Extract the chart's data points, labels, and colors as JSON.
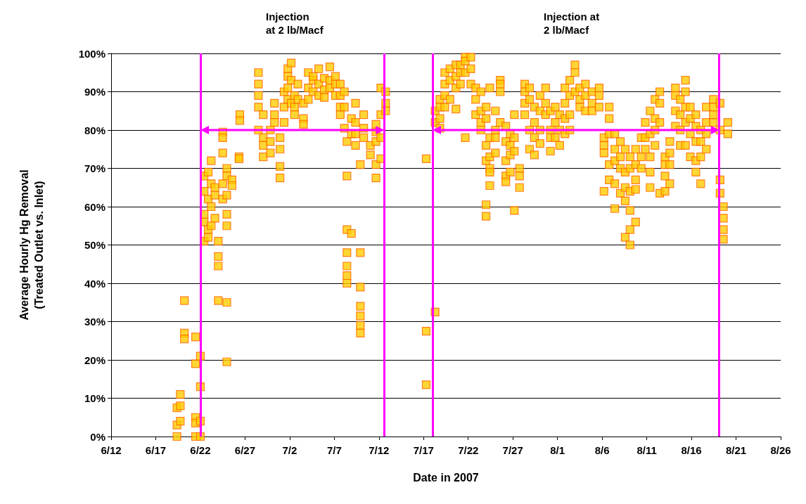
{
  "chart_data": {
    "type": "scatter",
    "xlabel": "Date in 2007",
    "ylabel": "Average Hourly Hg Removal\n(Treated Outlet vs. Inlet)",
    "annotations": [
      "Injection\nat 2 lb/Macf",
      "Injection at\n2 lb/Macf"
    ],
    "xlim": [
      "2007-06-12",
      "2007-08-26"
    ],
    "xticks": [
      {
        "value": "2007-06-12",
        "label": "6/12"
      },
      {
        "value": "2007-06-17",
        "label": "6/17"
      },
      {
        "value": "2007-06-22",
        "label": "6/22"
      },
      {
        "value": "2007-06-27",
        "label": "6/27"
      },
      {
        "value": "2007-07-02",
        "label": "7/2"
      },
      {
        "value": "2007-07-07",
        "label": "7/7"
      },
      {
        "value": "2007-07-12",
        "label": "7/12"
      },
      {
        "value": "2007-07-17",
        "label": "7/17"
      },
      {
        "value": "2007-07-22",
        "label": "7/22"
      },
      {
        "value": "2007-07-27",
        "label": "7/27"
      },
      {
        "value": "2007-08-01",
        "label": "8/1"
      },
      {
        "value": "2007-08-06",
        "label": "8/6"
      },
      {
        "value": "2007-08-11",
        "label": "8/11"
      },
      {
        "value": "2007-08-16",
        "label": "8/16"
      },
      {
        "value": "2007-08-21",
        "label": "8/21"
      },
      {
        "value": "2007-08-26",
        "label": "8/26"
      }
    ],
    "ylim": [
      0,
      100
    ],
    "yticks": [
      {
        "value": 0,
        "label": "0%"
      },
      {
        "value": 10,
        "label": "10%"
      },
      {
        "value": 20,
        "label": "20%"
      },
      {
        "value": 30,
        "label": "30%"
      },
      {
        "value": 40,
        "label": "40%"
      },
      {
        "value": 50,
        "label": "50%"
      },
      {
        "value": 60,
        "label": "60%"
      },
      {
        "value": 70,
        "label": "70%"
      },
      {
        "value": 80,
        "label": "80%"
      },
      {
        "value": 90,
        "label": "90%"
      },
      {
        "value": 100,
        "label": "100%"
      }
    ],
    "grid": "y",
    "ref_lines": [
      {
        "axis": "x",
        "value": "2007-06-22T00:00",
        "label": null,
        "color": "#ff00ff"
      },
      {
        "axis": "x",
        "value": "2007-07-12T14:00",
        "label": null,
        "color": "#ff00ff"
      },
      {
        "axis": "x",
        "value": "2007-07-18T00:00",
        "label": null,
        "color": "#ff00ff"
      },
      {
        "axis": "x",
        "value": "2007-08-19T03:00",
        "label": null,
        "color": "#ff00ff"
      }
    ],
    "series": [
      {
        "color": "#ffcc00",
        "marker": "square",
        "x": [
          "2007-06-19T09:00",
          "2007-06-19T09:00",
          "2007-06-19T09:00",
          "2007-06-19T18:00",
          "2007-06-19T18:00",
          "2007-06-19T18:00",
          "2007-06-20T05:00",
          "2007-06-20T05:00",
          "2007-06-20T05:00",
          "2007-06-21T11:00",
          "2007-06-21T11:00",
          "2007-06-21T11:00",
          "2007-06-21T11:00",
          "2007-06-21T11:00",
          "2007-06-22T00:00",
          "2007-06-22T00:00",
          "2007-06-22T00:00",
          "2007-06-22T00:00",
          "2007-06-22T10:00",
          "2007-06-22T10:00",
          "2007-06-22T10:00",
          "2007-06-22T10:00",
          "2007-06-22T10:00",
          "2007-06-22T21:00",
          "2007-06-22T21:00",
          "2007-06-22T21:00",
          "2007-06-22T21:00",
          "2007-06-23T05:00",
          "2007-06-23T05:00",
          "2007-06-23T05:00",
          "2007-06-23T05:00",
          "2007-06-23T15:00",
          "2007-06-23T15:00",
          "2007-06-23T15:00",
          "2007-06-24T00:00",
          "2007-06-24T00:00",
          "2007-06-24T00:00",
          "2007-06-24T00:00",
          "2007-06-24T12:00",
          "2007-06-24T12:00",
          "2007-06-24T12:00",
          "2007-06-24T12:00",
          "2007-06-24T12:00",
          "2007-06-24T23:00",
          "2007-06-24T23:00",
          "2007-06-24T23:00",
          "2007-06-24T23:00",
          "2007-06-24T23:00",
          "2007-06-24T23:00",
          "2007-06-24T23:00",
          "2007-06-25T13:00",
          "2007-06-25T13:00",
          "2007-06-26T08:00",
          "2007-06-26T08:00",
          "2007-06-26T10:00",
          "2007-06-26T10:00",
          "2007-06-28T12:00",
          "2007-06-28T12:00",
          "2007-06-28T12:00",
          "2007-06-28T12:00",
          "2007-06-28T12:00",
          "2007-06-29T01:00",
          "2007-06-29T01:00",
          "2007-06-29T01:00",
          "2007-06-29T01:00",
          "2007-06-29T20:00",
          "2007-06-29T20:00",
          "2007-06-29T20:00",
          "2007-06-30T07:00",
          "2007-06-30T07:00",
          "2007-06-30T07:00",
          "2007-06-30T22:00",
          "2007-06-30T22:00",
          "2007-06-30T22:00",
          "2007-06-30T22:00",
          "2007-07-01T09:00",
          "2007-07-01T09:00",
          "2007-07-01T09:00",
          "2007-07-01T19:00",
          "2007-07-01T19:00",
          "2007-07-01T19:00",
          "2007-07-01T19:00",
          "2007-07-02T04:00",
          "2007-07-02T04:00",
          "2007-07-02T04:00",
          "2007-07-02T13:00",
          "2007-07-02T13:00",
          "2007-07-02T13:00",
          "2007-07-02T22:00",
          "2007-07-02T22:00",
          "2007-07-03T13:00",
          "2007-07-03T13:00",
          "2007-07-03T13:00",
          "2007-07-04T02:00",
          "2007-07-04T02:00",
          "2007-07-04T02:00",
          "2007-07-04T15:00",
          "2007-07-04T15:00",
          "2007-07-04T15:00",
          "2007-07-05T06:00",
          "2007-07-05T06:00",
          "2007-07-05T06:00",
          "2007-07-05T21:00",
          "2007-07-05T21:00",
          "2007-07-05T21:00",
          "2007-07-06T12:00",
          "2007-07-06T12:00",
          "2007-07-06T12:00",
          "2007-07-07T03:00",
          "2007-07-07T03:00",
          "2007-07-07T03:00",
          "2007-07-07T16:00",
          "2007-07-07T16:00",
          "2007-07-07T16:00",
          "2007-07-07T16:00",
          "2007-07-08T03:00",
          "2007-07-08T03:00",
          "2007-07-08T03:00",
          "2007-07-08T10:00",
          "2007-07-08T10:00",
          "2007-07-08T10:00",
          "2007-07-08T10:00",
          "2007-07-08T10:00",
          "2007-07-08T10:00",
          "2007-07-08T10:00",
          "2007-07-08T22:00",
          "2007-07-08T22:00",
          "2007-07-08T22:00",
          "2007-07-09T09:00",
          "2007-07-09T09:00",
          "2007-07-09T09:00",
          "2007-07-09T09:00",
          "2007-07-09T22:00",
          "2007-07-09T22:00",
          "2007-07-09T22:00",
          "2007-07-09T22:00",
          "2007-07-09T22:00",
          "2007-07-09T22:00",
          "2007-07-09T22:00",
          "2007-07-10T07:00",
          "2007-07-10T07:00",
          "2007-07-10T07:00",
          "2007-07-11T01:00",
          "2007-07-11T01:00",
          "2007-07-11T16:00",
          "2007-07-11T16:00",
          "2007-07-11T16:00",
          "2007-07-11T16:00",
          "2007-07-11T16:00",
          "2007-07-12T05:00",
          "2007-07-12T05:00",
          "2007-07-12T05:00",
          "2007-07-12T05:00",
          "2007-07-12T18:00",
          "2007-07-12T18:00",
          "2007-07-12T18:00",
          "2007-07-17T07:00",
          "2007-07-17T07:00",
          "2007-07-17T07:00",
          "2007-07-18T07:00",
          "2007-07-18T07:00",
          "2007-07-18T07:00",
          "2007-07-18T20:00",
          "2007-07-18T20:00",
          "2007-07-18T20:00",
          "2007-07-18T20:00",
          "2007-07-19T09:00",
          "2007-07-19T09:00",
          "2007-07-19T09:00",
          "2007-07-19T09:00",
          "2007-07-19T23:00",
          "2007-07-19T23:00",
          "2007-07-19T23:00",
          "2007-07-20T15:00",
          "2007-07-20T15:00",
          "2007-07-20T15:00",
          "2007-07-20T15:00",
          "2007-07-21T03:00",
          "2007-07-21T03:00",
          "2007-07-21T03:00",
          "2007-07-21T16:00",
          "2007-07-21T16:00",
          "2007-07-21T16:00",
          "2007-07-21T16:00",
          "2007-07-22T07:00",
          "2007-07-22T07:00",
          "2007-07-22T07:00",
          "2007-07-22T20:00",
          "2007-07-22T20:00",
          "2007-07-22T20:00",
          "2007-07-23T10:00",
          "2007-07-23T10:00",
          "2007-07-23T10:00",
          "2007-07-23T10:00",
          "2007-07-24T00:00",
          "2007-07-24T00:00",
          "2007-07-24T00:00",
          "2007-07-24T00:00",
          "2007-07-24T00:00",
          "2007-07-24T00:00",
          "2007-07-24T10:00",
          "2007-07-24T10:00",
          "2007-07-24T10:00",
          "2007-07-24T10:00",
          "2007-07-24T10:00",
          "2007-07-24T10:00",
          "2007-07-25T01:00",
          "2007-07-25T01:00",
          "2007-07-25T01:00",
          "2007-07-25T01:00",
          "2007-07-25T14:00",
          "2007-07-25T14:00",
          "2007-07-25T14:00",
          "2007-07-25T14:00",
          "2007-07-26T05:00",
          "2007-07-26T05:00",
          "2007-07-26T05:00",
          "2007-07-26T05:00",
          "2007-07-26T05:00",
          "2007-07-26T17:00",
          "2007-07-26T17:00",
          "2007-07-26T17:00",
          "2007-07-26T17:00",
          "2007-07-27T04:00",
          "2007-07-27T04:00",
          "2007-07-27T04:00",
          "2007-07-27T04:00",
          "2007-07-27T18:00",
          "2007-07-27T18:00",
          "2007-07-27T18:00",
          "2007-07-28T08:00",
          "2007-07-28T08:00",
          "2007-07-28T08:00",
          "2007-07-28T08:00",
          "2007-07-28T21:00",
          "2007-07-28T21:00",
          "2007-07-28T21:00",
          "2007-07-28T21:00",
          "2007-07-29T10:00",
          "2007-07-29T10:00",
          "2007-07-29T10:00",
          "2007-07-29T10:00",
          "2007-07-30T01:00",
          "2007-07-30T01:00",
          "2007-07-30T01:00",
          "2007-07-30T01:00",
          "2007-07-30T16:00",
          "2007-07-30T16:00",
          "2007-07-30T16:00",
          "2007-07-31T05:00",
          "2007-07-31T05:00",
          "2007-07-31T05:00",
          "2007-07-31T05:00",
          "2007-07-31T18:00",
          "2007-07-31T18:00",
          "2007-07-31T18:00",
          "2007-08-01T06:00",
          "2007-08-01T06:00",
          "2007-08-01T06:00",
          "2007-08-01T20:00",
          "2007-08-01T20:00",
          "2007-08-01T20:00",
          "2007-08-01T20:00",
          "2007-08-02T09:00",
          "2007-08-02T09:00",
          "2007-08-02T09:00",
          "2007-08-02T09:00",
          "2007-08-02T23:00",
          "2007-08-02T23:00",
          "2007-08-02T23:00",
          "2007-08-03T12:00",
          "2007-08-03T12:00",
          "2007-08-03T12:00",
          "2007-08-04T03:00",
          "2007-08-04T03:00",
          "2007-08-04T03:00",
          "2007-08-04T21:00",
          "2007-08-04T21:00",
          "2007-08-04T21:00",
          "2007-08-05T16:00",
          "2007-08-05T16:00",
          "2007-08-05T16:00",
          "2007-08-06T05:00",
          "2007-08-06T05:00",
          "2007-08-06T05:00",
          "2007-08-06T05:00",
          "2007-08-06T19:00",
          "2007-08-06T19:00",
          "2007-08-06T19:00",
          "2007-08-06T19:00",
          "2007-08-06T19:00",
          "2007-08-07T10:00",
          "2007-08-07T10:00",
          "2007-08-07T10:00",
          "2007-08-07T10:00",
          "2007-08-07T10:00",
          "2007-08-08T01:00",
          "2007-08-08T01:00",
          "2007-08-08T01:00",
          "2007-08-08T01:00",
          "2007-08-08T14:00",
          "2007-08-08T14:00",
          "2007-08-08T14:00",
          "2007-08-08T14:00",
          "2007-08-08T14:00",
          "2007-08-09T03:00",
          "2007-08-09T03:00",
          "2007-08-09T03:00",
          "2007-08-09T03:00",
          "2007-08-09T03:00",
          "2007-08-09T03:00",
          "2007-08-09T18:00",
          "2007-08-09T18:00",
          "2007-08-09T18:00",
          "2007-08-09T18:00",
          "2007-08-09T18:00",
          "2007-08-10T09:00",
          "2007-08-10T09:00",
          "2007-08-10T09:00",
          "2007-08-10T20:00",
          "2007-08-10T20:00",
          "2007-08-10T20:00",
          "2007-08-11T09:00",
          "2007-08-11T09:00",
          "2007-08-11T09:00",
          "2007-08-11T09:00",
          "2007-08-11T09:00",
          "2007-08-11T22:00",
          "2007-08-11T22:00",
          "2007-08-11T22:00",
          "2007-08-11T22:00",
          "2007-08-12T11:00",
          "2007-08-12T11:00",
          "2007-08-12T11:00",
          "2007-08-12T11:00",
          "2007-08-13T01:00",
          "2007-08-13T01:00",
          "2007-08-13T01:00",
          "2007-08-13T01:00",
          "2007-08-13T14:00",
          "2007-08-13T14:00",
          "2007-08-13T14:00",
          "2007-08-13T14:00",
          "2007-08-14T05:00",
          "2007-08-14T05:00",
          "2007-08-14T05:00",
          "2007-08-14T05:00",
          "2007-08-14T18:00",
          "2007-08-14T18:00",
          "2007-08-14T18:00",
          "2007-08-14T18:00",
          "2007-08-15T08:00",
          "2007-08-15T08:00",
          "2007-08-15T08:00",
          "2007-08-15T08:00",
          "2007-08-15T08:00",
          "2007-08-15T21:00",
          "2007-08-15T21:00",
          "2007-08-15T21:00",
          "2007-08-15T21:00",
          "2007-08-16T12:00",
          "2007-08-16T12:00",
          "2007-08-16T12:00",
          "2007-08-16T12:00",
          "2007-08-16T12:00",
          "2007-08-17T01:00",
          "2007-08-17T01:00",
          "2007-08-17T01:00",
          "2007-08-17T01:00",
          "2007-08-17T16:00",
          "2007-08-17T16:00",
          "2007-08-17T16:00",
          "2007-08-17T16:00",
          "2007-08-18T11:00",
          "2007-08-18T11:00",
          "2007-08-18T11:00",
          "2007-08-18T11:00",
          "2007-08-19T05:00",
          "2007-08-19T05:00",
          "2007-08-19T05:00",
          "2007-08-19T05:00",
          "2007-08-19T14:00",
          "2007-08-19T14:00",
          "2007-08-19T14:00",
          "2007-08-19T14:00",
          "2007-08-20T02:00",
          "2007-08-20T02:00"
        ],
        "values": [
          0,
          3,
          7.5,
          11,
          8,
          4,
          35.5,
          27,
          25.5,
          26,
          19,
          5,
          3.5,
          0,
          21,
          13,
          0,
          4,
          56,
          64,
          68,
          51,
          58,
          69,
          62,
          54,
          52,
          72,
          66,
          60,
          55,
          63,
          57,
          65,
          47,
          44.5,
          35.5,
          51,
          79.5,
          78,
          74,
          62,
          66,
          70,
          68,
          58,
          55,
          63,
          35,
          19.5,
          67,
          65.5,
          73,
          72.5,
          84,
          82.5,
          95,
          92,
          89,
          86,
          80,
          84,
          78,
          76,
          73,
          80,
          77,
          74,
          87,
          84,
          82,
          78,
          75,
          70.5,
          67.5,
          90,
          86,
          82,
          96,
          94,
          91,
          88,
          97.5,
          93,
          87,
          86,
          84,
          89,
          92,
          88,
          83,
          81.5,
          87,
          95,
          91,
          88,
          93,
          90,
          94,
          96,
          92,
          89,
          93.5,
          90.5,
          88.5,
          96.5,
          93,
          91,
          94,
          92,
          89,
          92,
          89,
          86,
          84,
          90,
          86,
          80.5,
          77,
          68,
          54,
          48,
          44.5,
          42,
          40,
          53,
          79,
          83,
          87,
          82,
          79,
          76,
          71,
          48,
          39,
          34,
          31.5,
          29,
          27,
          84,
          80.5,
          78,
          73.5,
          76,
          81.5,
          77,
          71,
          67.5,
          79.5,
          91,
          84,
          78,
          72.5,
          90,
          87,
          85,
          72.5,
          27.5,
          13.5,
          32.5,
          82,
          85,
          88,
          86,
          83,
          80.5,
          95,
          92,
          89,
          86,
          96,
          93,
          88,
          97,
          94,
          91,
          85.5,
          97,
          95,
          92,
          99,
          98,
          95,
          78,
          99,
          96,
          92,
          91,
          88,
          84,
          90,
          85,
          82,
          80,
          86,
          83,
          76,
          72,
          60.5,
          57.5,
          78,
          73,
          70,
          65.5,
          69,
          91,
          85,
          80,
          78,
          74,
          93,
          92,
          90,
          82,
          81,
          77,
          72,
          68,
          66.5,
          79,
          76,
          73.5,
          69,
          84,
          78,
          74.5,
          59,
          70,
          65,
          68,
          92,
          90,
          87,
          84,
          91,
          88,
          80,
          75,
          86,
          82,
          78,
          73.5,
          89,
          85,
          80,
          76.5,
          91,
          87,
          84,
          85,
          80,
          78,
          74.5,
          86,
          82,
          78,
          84,
          80,
          76,
          91,
          87,
          83,
          79,
          93,
          89,
          84,
          80,
          97,
          95,
          90,
          91,
          88,
          86,
          92,
          89,
          85,
          90,
          87,
          85,
          91,
          89,
          86,
          78,
          76,
          74,
          64,
          86,
          83,
          79,
          71,
          67,
          79,
          75,
          72,
          59.5,
          66,
          77,
          73,
          70,
          63.5,
          75,
          69,
          65,
          61.5,
          52,
          73,
          70,
          64,
          59,
          54,
          50,
          75,
          71,
          67,
          64.5,
          56,
          78,
          73,
          70,
          82,
          78,
          75,
          85,
          79,
          73,
          69,
          65,
          88,
          83,
          80,
          76,
          90,
          87,
          82,
          63.5,
          73,
          71,
          68,
          64,
          77,
          74,
          71,
          66,
          91,
          89,
          85,
          81,
          88,
          84,
          80,
          76,
          93,
          90,
          86,
          82,
          76,
          86,
          83,
          79,
          73,
          84,
          81,
          77,
          72,
          69,
          80,
          77,
          73,
          66,
          86,
          82,
          79,
          75,
          88,
          86,
          84,
          82,
          87,
          80,
          67,
          63.5,
          60,
          57,
          54,
          51.5,
          82,
          79
        ]
      }
    ]
  }
}
